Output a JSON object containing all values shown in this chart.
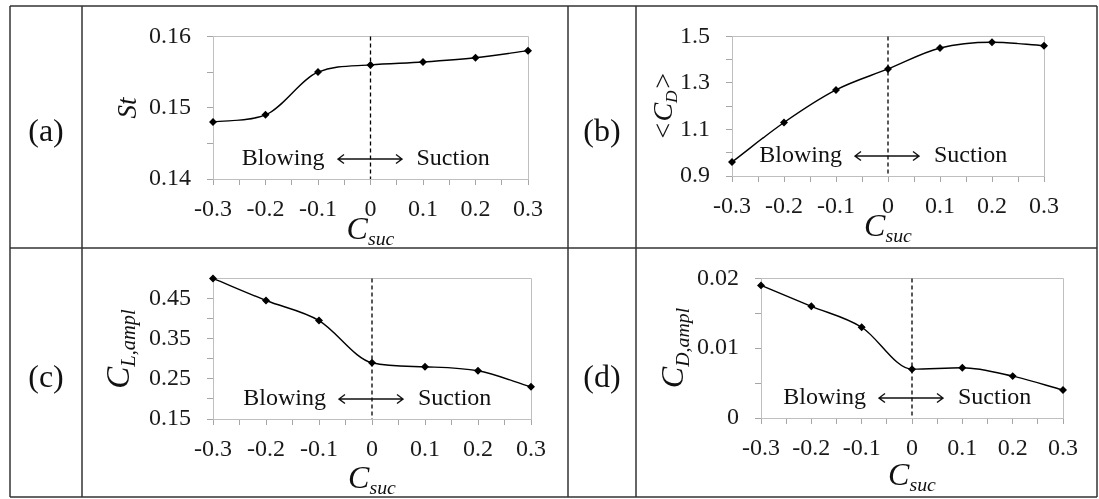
{
  "chart_data": [
    {
      "type": "line",
      "title": "(a)",
      "xlabel": "C$_{suc}$",
      "ylabel": "St",
      "x": [
        -0.3,
        -0.2,
        -0.1,
        0,
        0.1,
        0.2,
        0.3
      ],
      "values": [
        0.148,
        0.149,
        0.155,
        0.156,
        0.1564,
        0.157,
        0.158
      ],
      "color": "#000000",
      "marker": "diamond",
      "xlim": [
        -0.3,
        0.3
      ],
      "xticks": [
        -0.3,
        {
          "value": -0.25,
          "label": null
        },
        -0.2,
        {
          "value": -0.15,
          "label": null
        },
        -0.1,
        {
          "value": -0.05,
          "label": null
        },
        0,
        {
          "value": 0.05,
          "label": null
        },
        0.1,
        {
          "value": 0.15,
          "label": null
        },
        0.2,
        {
          "value": 0.25,
          "label": null
        },
        0.3
      ],
      "ylim": [
        0.14,
        0.16
      ],
      "yticks": [
        0.14,
        {
          "value": 0.145,
          "label": null
        },
        0.15,
        {
          "value": 0.155,
          "label": null
        },
        0.16
      ],
      "ref_lines": [
        {
          "axis": "x",
          "value": 0,
          "line_style": "dashed",
          "color": "#000000"
        }
      ],
      "annotations": [
        "Blowing",
        "Suction"
      ]
    },
    {
      "type": "line",
      "title": "(b)",
      "xlabel": "C$_{suc}$",
      "ylabel": "<C$_{D}$>",
      "x": [
        -0.3,
        -0.2,
        -0.1,
        0,
        0.1,
        0.2,
        0.3
      ],
      "values": [
        0.96,
        1.13,
        1.27,
        1.36,
        1.45,
        1.475,
        1.46
      ],
      "color": "#000000",
      "marker": "diamond",
      "xlim": [
        -0.3,
        0.3
      ],
      "xticks": [
        -0.3,
        {
          "value": -0.25,
          "label": null
        },
        -0.2,
        {
          "value": -0.15,
          "label": null
        },
        -0.1,
        {
          "value": -0.05,
          "label": null
        },
        0,
        {
          "value": 0.05,
          "label": null
        },
        0.1,
        {
          "value": 0.15,
          "label": null
        },
        0.2,
        {
          "value": 0.25,
          "label": null
        },
        0.3
      ],
      "ylim": [
        0.9,
        1.5
      ],
      "yticks": [
        0.9,
        {
          "value": 1.0,
          "label": null
        },
        1.1,
        {
          "value": 1.2,
          "label": null
        },
        1.3,
        {
          "value": 1.4,
          "label": null
        },
        1.5
      ],
      "ref_lines": [
        {
          "axis": "x",
          "value": 0,
          "line_style": "dashed",
          "color": "#000000"
        }
      ],
      "annotations": [
        "Blowing",
        "Suction"
      ]
    },
    {
      "type": "line",
      "title": "(c)",
      "xlabel": "C$_{suc}$",
      "ylabel": "C$_{L,ampl}$",
      "x": [
        -0.3,
        -0.2,
        -0.1,
        0,
        0.1,
        0.2,
        0.3
      ],
      "values": [
        0.5,
        0.445,
        0.395,
        0.29,
        0.28,
        0.27,
        0.23
      ],
      "color": "#000000",
      "marker": "diamond",
      "xlim": [
        -0.3,
        0.3
      ],
      "xticks": [
        -0.3,
        {
          "value": -0.25,
          "label": null
        },
        -0.2,
        {
          "value": -0.15,
          "label": null
        },
        -0.1,
        {
          "value": -0.05,
          "label": null
        },
        0,
        {
          "value": 0.05,
          "label": null
        },
        0.1,
        {
          "value": 0.15,
          "label": null
        },
        0.2,
        {
          "value": 0.25,
          "label": null
        },
        0.3
      ],
      "ylim": [
        0.15,
        0.5
      ],
      "yticks": [
        0.15,
        {
          "value": 0.2,
          "label": null
        },
        0.25,
        {
          "value": 0.3,
          "label": null
        },
        0.35,
        {
          "value": 0.4,
          "label": null
        },
        0.45
      ],
      "ref_lines": [
        {
          "axis": "x",
          "value": 0,
          "line_style": "dashed",
          "color": "#000000"
        }
      ],
      "annotations": [
        "Blowing",
        "Suction"
      ]
    },
    {
      "type": "line",
      "title": "(d)",
      "xlabel": "C$_{suc}$",
      "ylabel": "C$_{D,ampl}$",
      "x": [
        -0.3,
        -0.2,
        -0.1,
        0,
        0.1,
        0.2,
        0.3
      ],
      "values": [
        0.019,
        0.016,
        0.013,
        0.007,
        0.0072,
        0.006,
        0.004
      ],
      "color": "#000000",
      "marker": "diamond",
      "xlim": [
        -0.3,
        0.3
      ],
      "xticks": [
        -0.3,
        {
          "value": -0.25,
          "label": null
        },
        -0.2,
        {
          "value": -0.15,
          "label": null
        },
        -0.1,
        {
          "value": -0.05,
          "label": null
        },
        0,
        {
          "value": 0.05,
          "label": null
        },
        0.1,
        {
          "value": 0.15,
          "label": null
        },
        0.2,
        {
          "value": 0.25,
          "label": null
        },
        0.3
      ],
      "ylim": [
        0,
        0.02
      ],
      "yticks": [
        0,
        {
          "value": 0.005,
          "label": null
        },
        0.01,
        {
          "value": 0.015,
          "label": null
        },
        0.02
      ],
      "ref_lines": [
        {
          "axis": "x",
          "value": 0,
          "line_style": "dashed",
          "color": "#000000"
        }
      ],
      "annotations": [
        "Blowing",
        "Suction"
      ]
    }
  ]
}
